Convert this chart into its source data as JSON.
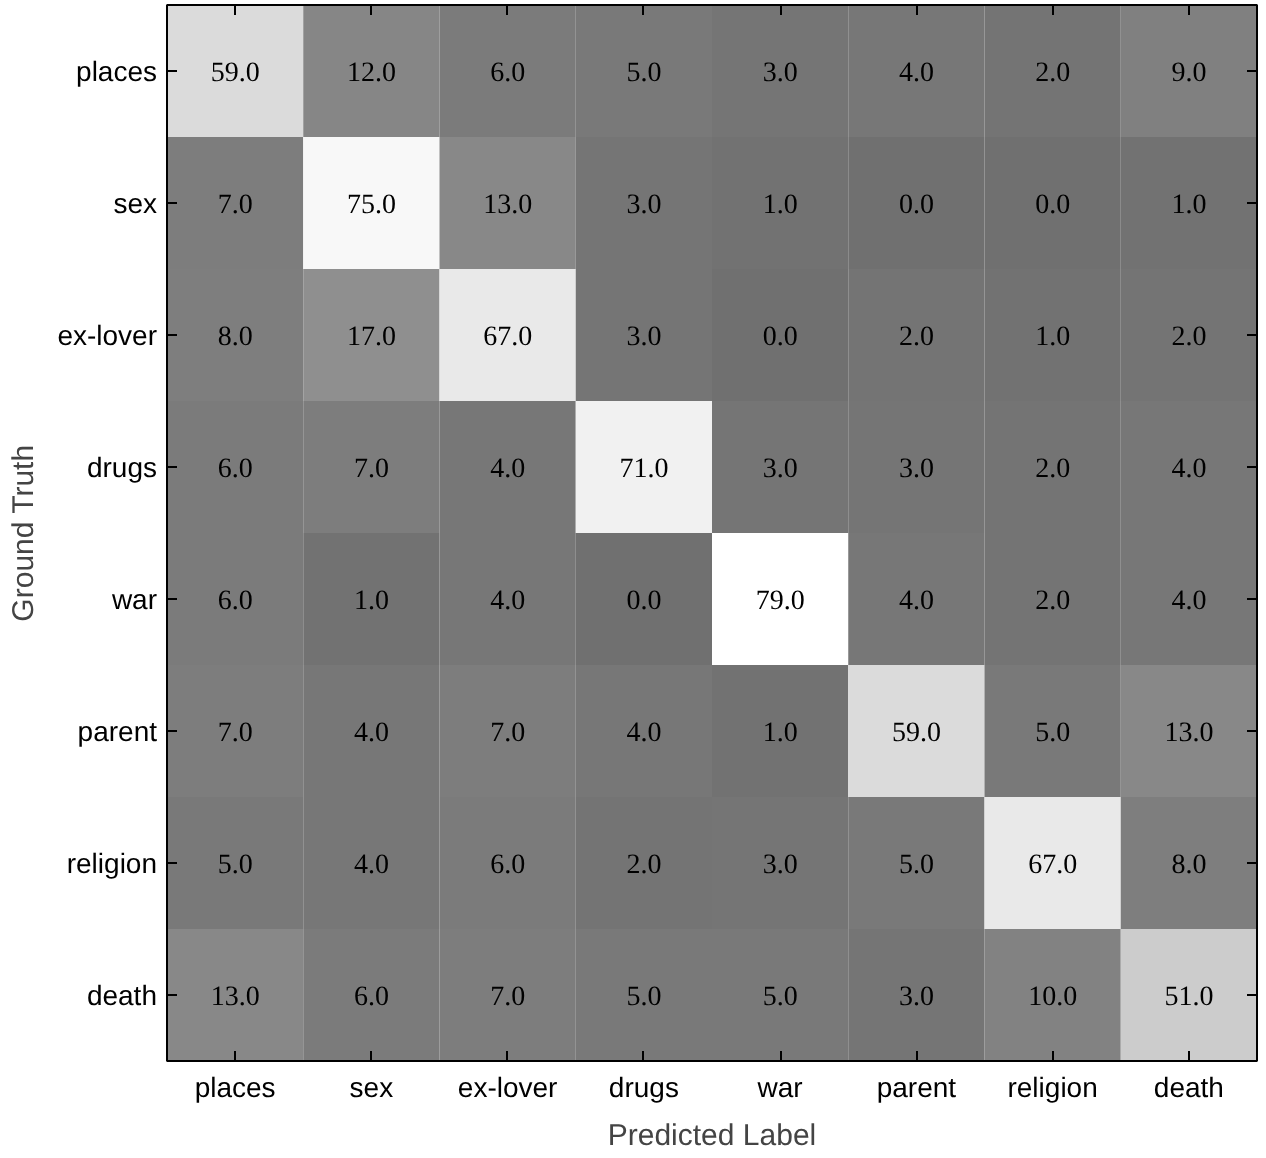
{
  "chart_data": {
    "type": "heatmap",
    "xlabel": "Predicted Label",
    "ylabel": "Ground Truth",
    "categories": [
      "places",
      "sex",
      "ex-lover",
      "drugs",
      "war",
      "parent",
      "religion",
      "death"
    ],
    "y_categories": [
      "places",
      "sex",
      "ex-lover",
      "drugs",
      "war",
      "parent",
      "religion",
      "death"
    ],
    "cells": [
      [
        59,
        12,
        6,
        5,
        3,
        4,
        2,
        9
      ],
      [
        7,
        75,
        13,
        3,
        1,
        0,
        0,
        1
      ],
      [
        8,
        17,
        67,
        3,
        0,
        2,
        1,
        2
      ],
      [
        6,
        7,
        4,
        71,
        3,
        3,
        2,
        4
      ],
      [
        6,
        1,
        4,
        0,
        79,
        4,
        2,
        4
      ],
      [
        7,
        4,
        7,
        4,
        1,
        59,
        5,
        13
      ],
      [
        5,
        4,
        6,
        2,
        3,
        5,
        67,
        8
      ],
      [
        13,
        6,
        7,
        5,
        5,
        3,
        10,
        51
      ]
    ],
    "cell_labels": [
      [
        "59.0",
        "12.0",
        "6.0",
        "5.0",
        "3.0",
        "4.0",
        "2.0",
        "9.0"
      ],
      [
        "7.0",
        "75.0",
        "13.0",
        "3.0",
        "1.0",
        "0.0",
        "0.0",
        "1.0"
      ],
      [
        "8.0",
        "17.0",
        "67.0",
        "3.0",
        "0.0",
        "2.0",
        "1.0",
        "2.0"
      ],
      [
        "6.0",
        "7.0",
        "4.0",
        "71.0",
        "3.0",
        "3.0",
        "2.0",
        "4.0"
      ],
      [
        "6.0",
        "1.0",
        "4.0",
        "0.0",
        "79.0",
        "4.0",
        "2.0",
        "4.0"
      ],
      [
        "7.0",
        "4.0",
        "7.0",
        "4.0",
        "1.0",
        "59.0",
        "5.0",
        "13.0"
      ],
      [
        "5.0",
        "4.0",
        "6.0",
        "2.0",
        "3.0",
        "5.0",
        "67.0",
        "8.0"
      ],
      [
        "13.0",
        "6.0",
        "7.0",
        "5.0",
        "5.0",
        "3.0",
        "10.0",
        "51.0"
      ]
    ]
  }
}
